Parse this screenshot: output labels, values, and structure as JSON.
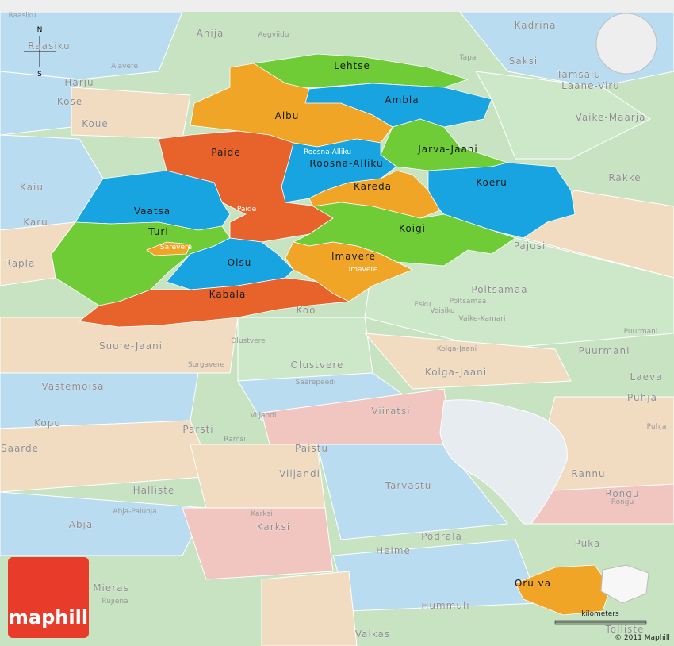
{
  "compass": [
    "N",
    "S"
  ],
  "selected_areas": [
    "Lehtse",
    "Ambla",
    "Albu",
    "Roosna-Alliku",
    "Jarva-Jaani",
    "Paide",
    "Kareda",
    "Koeru",
    "Vaatsa",
    "Turi",
    "Koigi",
    "Oisu",
    "Imavere",
    "Kabala"
  ],
  "towns": [
    "Roosna-Alliku",
    "Paide",
    "Sarevere",
    "Imavere",
    "Aegviidu",
    "Tapa",
    "Alavere",
    "Esku",
    "Poltsamaa",
    "Voisiku",
    "Vaike-Kamari",
    "Puurmani",
    "Olustvere",
    "Surgavere",
    "Kolga-Jaani",
    "Saarepeedi",
    "Viljandi",
    "Ramsi",
    "Puhja",
    "Rongu",
    "Abja-Paluoja",
    "Karksi",
    "Rujiena",
    "Raasiku"
  ],
  "neighbors": [
    "Raasiku",
    "Anija",
    "Kadrina",
    "Saksi",
    "Tamsalu",
    "Laane-Viru",
    "Harju",
    "Kose",
    "Koue",
    "Vaike-Maarja",
    "Rakke",
    "Kaiu",
    "Karu",
    "Rapla",
    "Pajusi",
    "Poltsamaa",
    "Koo",
    "Puurmani",
    "Suure-Jaani",
    "Olustvere",
    "Kolga-Jaani",
    "Laeva",
    "Vastemoisa",
    "Puhja",
    "Viiratsi",
    "Kopu",
    "Parsti",
    "Paistu",
    "Saarde",
    "Viljandi",
    "Rannu",
    "Rongu",
    "Halliste",
    "Tarvastu",
    "Abja",
    "Karksi",
    "Podrala",
    "Puka",
    "Helme",
    "Mieras",
    "Hummuli",
    "Valkas",
    "Tolliste",
    "Oru va"
  ],
  "logo": "maphill",
  "scale_label": "kilometers",
  "copyright": "© 2011 Maphill"
}
